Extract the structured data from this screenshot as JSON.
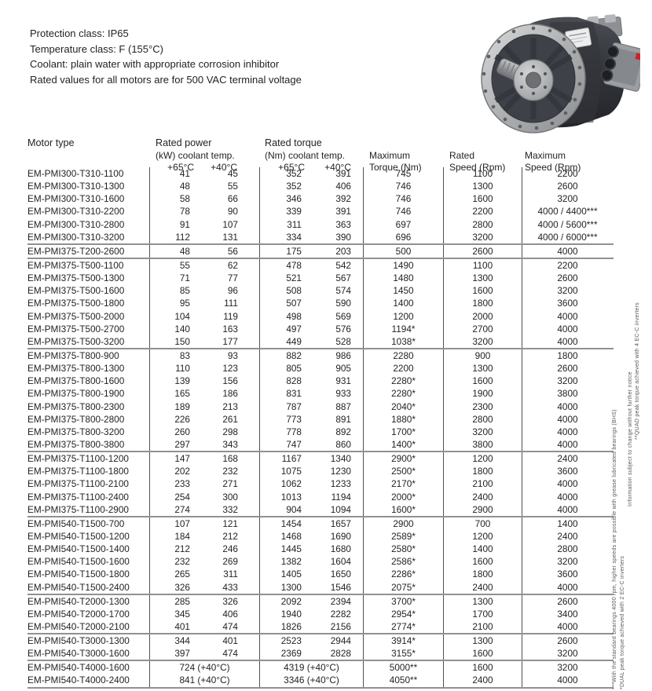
{
  "info_block": {
    "lines": [
      "Protection class: IP65",
      "Temperature class: F (155°C)",
      "Coolant: plain water with appropriate corrosion inhibitor",
      "Rated values for all motors are for 500 VAC terminal voltage"
    ]
  },
  "table": {
    "headers": {
      "motor_type": "Motor type",
      "power_title": "Rated power",
      "power_sub": "(kW) coolant temp.",
      "torque_title": "Rated torque",
      "torque_sub": "(Nm) coolant temp.",
      "temp_65": "+65°C",
      "temp_40": "+40°C",
      "max_torque_l1": "Maximum",
      "max_torque_l2": "Torque (Nm)",
      "rated_speed_l1": "Rated",
      "rated_speed_l2": "Speed (Rpm)",
      "max_speed_l1": "Maximum",
      "max_speed_l2": "Speed (Rpm)"
    },
    "groups": [
      {
        "rows": [
          [
            "EM-PMI300-T310-1100",
            "41",
            "45",
            "352",
            "391",
            "745",
            "1100",
            "2200"
          ],
          [
            "EM-PMI300-T310-1300",
            "48",
            "55",
            "352",
            "406",
            "746",
            "1300",
            "2600"
          ],
          [
            "EM-PMI300-T310-1600",
            "58",
            "66",
            "346",
            "392",
            "746",
            "1600",
            "3200"
          ],
          [
            "EM-PMI300-T310-2200",
            "78",
            "90",
            "339",
            "391",
            "746",
            "2200",
            "4000 / 4400***"
          ],
          [
            "EM-PMI300-T310-2800",
            "91",
            "107",
            "311",
            "363",
            "697",
            "2800",
            "4000 / 5600***"
          ],
          [
            "EM-PMI300-T310-3200",
            "112",
            "131",
            "334",
            "390",
            "696",
            "3200",
            "4000 / 6000***"
          ]
        ]
      },
      {
        "rows": [
          [
            "EM-PMI375-T200-2600",
            "48",
            "56",
            "175",
            "203",
            "500",
            "2600",
            "4000"
          ]
        ]
      },
      {
        "rows": [
          [
            "EM-PMI375-T500-1100",
            "55",
            "62",
            "478",
            "542",
            "1490",
            "1100",
            "2200"
          ],
          [
            "EM-PMI375-T500-1300",
            "71",
            "77",
            "521",
            "567",
            "1480",
            "1300",
            "2600"
          ],
          [
            "EM-PMI375-T500-1600",
            "85",
            "96",
            "508",
            "574",
            "1450",
            "1600",
            "3200"
          ],
          [
            "EM-PMI375-T500-1800",
            "95",
            "111",
            "507",
            "590",
            "1400",
            "1800",
            "3600"
          ],
          [
            "EM-PMI375-T500-2000",
            "104",
            "119",
            "498",
            "569",
            "1200",
            "2000",
            "4000"
          ],
          [
            "EM-PMI375-T500-2700",
            "140",
            "163",
            "497",
            "576",
            "1194*",
            "2700",
            "4000"
          ],
          [
            "EM-PMI375-T500-3200",
            "150",
            "177",
            "449",
            "528",
            "1038*",
            "3200",
            "4000"
          ]
        ]
      },
      {
        "rows": [
          [
            "EM-PMI375-T800-900",
            "83",
            "93",
            "882",
            "986",
            "2280",
            "900",
            "1800"
          ],
          [
            "EM-PMI375-T800-1300",
            "110",
            "123",
            "805",
            "905",
            "2200",
            "1300",
            "2600"
          ],
          [
            "EM-PMI375-T800-1600",
            "139",
            "156",
            "828",
            "931",
            "2280*",
            "1600",
            "3200"
          ],
          [
            "EM-PMI375-T800-1900",
            "165",
            "186",
            "831",
            "933",
            "2280*",
            "1900",
            "3800"
          ],
          [
            "EM-PMI375-T800-2300",
            "189",
            "213",
            "787",
            "887",
            "2040*",
            "2300",
            "4000"
          ],
          [
            "EM-PMI375-T800-2800",
            "226",
            "261",
            "773",
            "891",
            "1880*",
            "2800",
            "4000"
          ],
          [
            "EM-PMI375-T800-3200",
            "260",
            "298",
            "778",
            "892",
            "1700*",
            "3200",
            "4000"
          ],
          [
            "EM-PMI375-T800-3800",
            "297",
            "343",
            "747",
            "860",
            "1400*",
            "3800",
            "4000"
          ]
        ]
      },
      {
        "rows": [
          [
            "EM-PMI375-T1100-1200",
            "147",
            "168",
            "1167",
            "1340",
            "2900*",
            "1200",
            "2400"
          ],
          [
            "EM-PMI375-T1100-1800",
            "202",
            "232",
            "1075",
            "1230",
            "2500*",
            "1800",
            "3600"
          ],
          [
            "EM-PMI375-T1100-2100",
            "233",
            "271",
            "1062",
            "1233",
            "2170*",
            "2100",
            "4000"
          ],
          [
            "EM-PMI375-T1100-2400",
            "254",
            "300",
            "1013",
            "1194",
            "2000*",
            "2400",
            "4000"
          ],
          [
            "EM-PMI375-T1100-2900",
            "274",
            "332",
            "904",
            "1094",
            "1600*",
            "2900",
            "4000"
          ]
        ]
      },
      {
        "rows": [
          [
            "EM-PMI540-T1500-700",
            "107",
            "121",
            "1454",
            "1657",
            "2900",
            "700",
            "1400"
          ],
          [
            "EM-PMI540-T1500-1200",
            "184",
            "212",
            "1468",
            "1690",
            "2589*",
            "1200",
            "2400"
          ],
          [
            "EM-PMI540-T1500-1400",
            "212",
            "246",
            "1445",
            "1680",
            "2580*",
            "1400",
            "2800"
          ],
          [
            "EM-PMI540-T1500-1600",
            "232",
            "269",
            "1382",
            "1604",
            "2586*",
            "1600",
            "3200"
          ],
          [
            "EM-PMI540-T1500-1800",
            "265",
            "311",
            "1405",
            "1650",
            "2286*",
            "1800",
            "3600"
          ],
          [
            "EM-PMI540-T1500-2400",
            "326",
            "433",
            "1300",
            "1546",
            "2075*",
            "2400",
            "4000"
          ]
        ]
      },
      {
        "rows": [
          [
            "EM-PMI540-T2000-1300",
            "285",
            "326",
            "2092",
            "2394",
            "3700*",
            "1300",
            "2600"
          ],
          [
            "EM-PMI540-T2000-1700",
            "345",
            "406",
            "1940",
            "2282",
            "2954*",
            "1700",
            "3400"
          ],
          [
            "EM-PMI540-T2000-2100",
            "401",
            "474",
            "1826",
            "2156",
            "2774*",
            "2100",
            "4000"
          ]
        ]
      },
      {
        "rows": [
          [
            "EM-PMI540-T3000-1300",
            "344",
            "401",
            "2523",
            "2944",
            "3914*",
            "1300",
            "2600"
          ],
          [
            "EM-PMI540-T3000-1600",
            "397",
            "474",
            "2369",
            "2828",
            "3155*",
            "1600",
            "3200"
          ]
        ]
      },
      {
        "rows": [
          [
            "EM-PMI540-T4000-1600",
            "724 (+40°C)",
            "4319 (+40°C)",
            "5000**",
            "1600",
            "3200"
          ],
          [
            "EM-PMI540-T4000-2400",
            "841 (+40°C)",
            "3346 (+40°C)",
            "4050**",
            "2400",
            "4000"
          ]
        ]
      }
    ]
  },
  "side_notes": {
    "bearings": "***With the standard bearings 4000 rpm, higher speeds are possible with grease lubricated bearings (BHS)",
    "dual": "*DUAL peak torque achieved with 2 EC-C inverters",
    "quad": "**QUAD peak torque achieved with 4 EC-C inverters",
    "information": "Information subject to change without further notice"
  },
  "colors": {
    "text": "#231f20",
    "rule_gray": "#8f9194",
    "photo_badge_red": "#cf1f2e"
  }
}
